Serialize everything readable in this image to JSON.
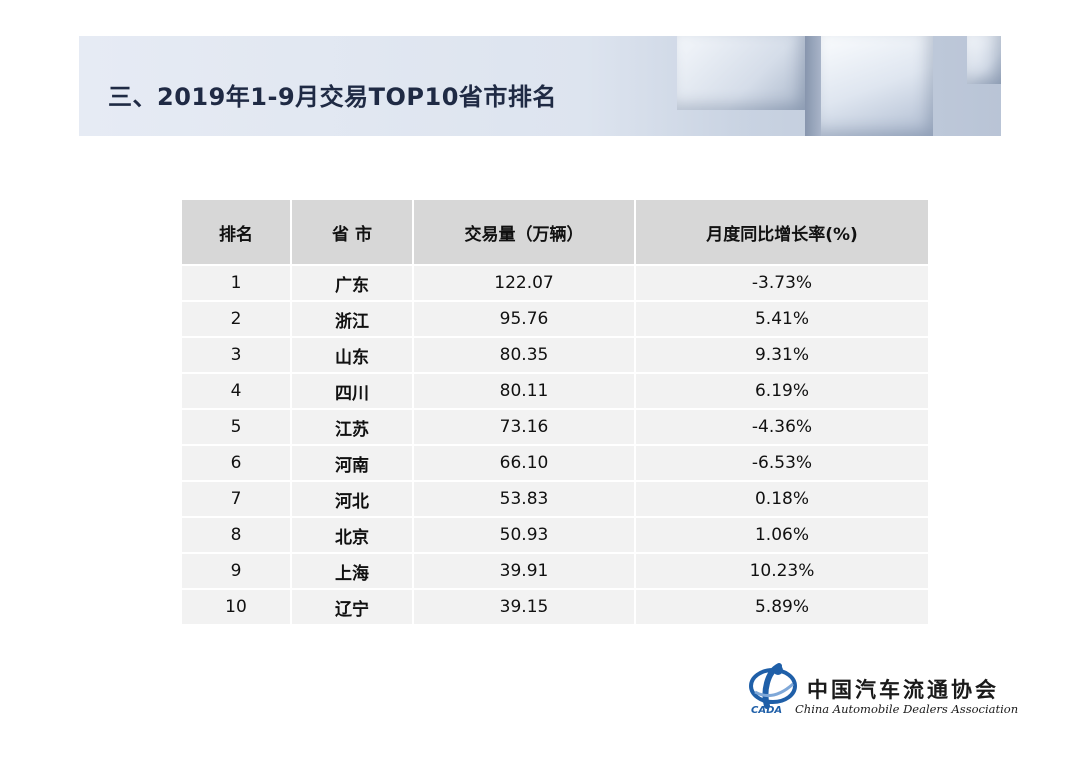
{
  "header": {
    "title": "三、2019年1-9月交易TOP10省市排名"
  },
  "table": {
    "columns": [
      "排名",
      "省 市",
      "交易量（万辆）",
      "月度同比增长率(%)"
    ],
    "rows": [
      {
        "rank": "1",
        "province": "广东",
        "volume": "122.07",
        "growth": "-3.73%"
      },
      {
        "rank": "2",
        "province": "浙江",
        "volume": "95.76",
        "growth": "5.41%"
      },
      {
        "rank": "3",
        "province": "山东",
        "volume": "80.35",
        "growth": "9.31%"
      },
      {
        "rank": "4",
        "province": "四川",
        "volume": "80.11",
        "growth": "6.19%"
      },
      {
        "rank": "5",
        "province": "江苏",
        "volume": "73.16",
        "growth": "-4.36%"
      },
      {
        "rank": "6",
        "province": "河南",
        "volume": "66.10",
        "growth": "-6.53%"
      },
      {
        "rank": "7",
        "province": "河北",
        "volume": "53.83",
        "growth": "0.18%"
      },
      {
        "rank": "8",
        "province": "北京",
        "volume": "50.93",
        "growth": "1.06%"
      },
      {
        "rank": "9",
        "province": "上海",
        "volume": "39.91",
        "growth": "10.23%"
      },
      {
        "rank": "10",
        "province": "辽宁",
        "volume": "39.15",
        "growth": "5.89%"
      }
    ]
  },
  "footer": {
    "logo_icon": "cada-logo-icon",
    "logo_abbr": "CADA",
    "org_name_cn": "中国汽车流通协会",
    "org_name_en": "China Automobile Dealers Association"
  },
  "colors": {
    "header_bg": "#d7d7d7",
    "row_bg": "#f2f2f2",
    "title_color": "#1f2a44",
    "logo_blue": "#1f5fa8"
  }
}
